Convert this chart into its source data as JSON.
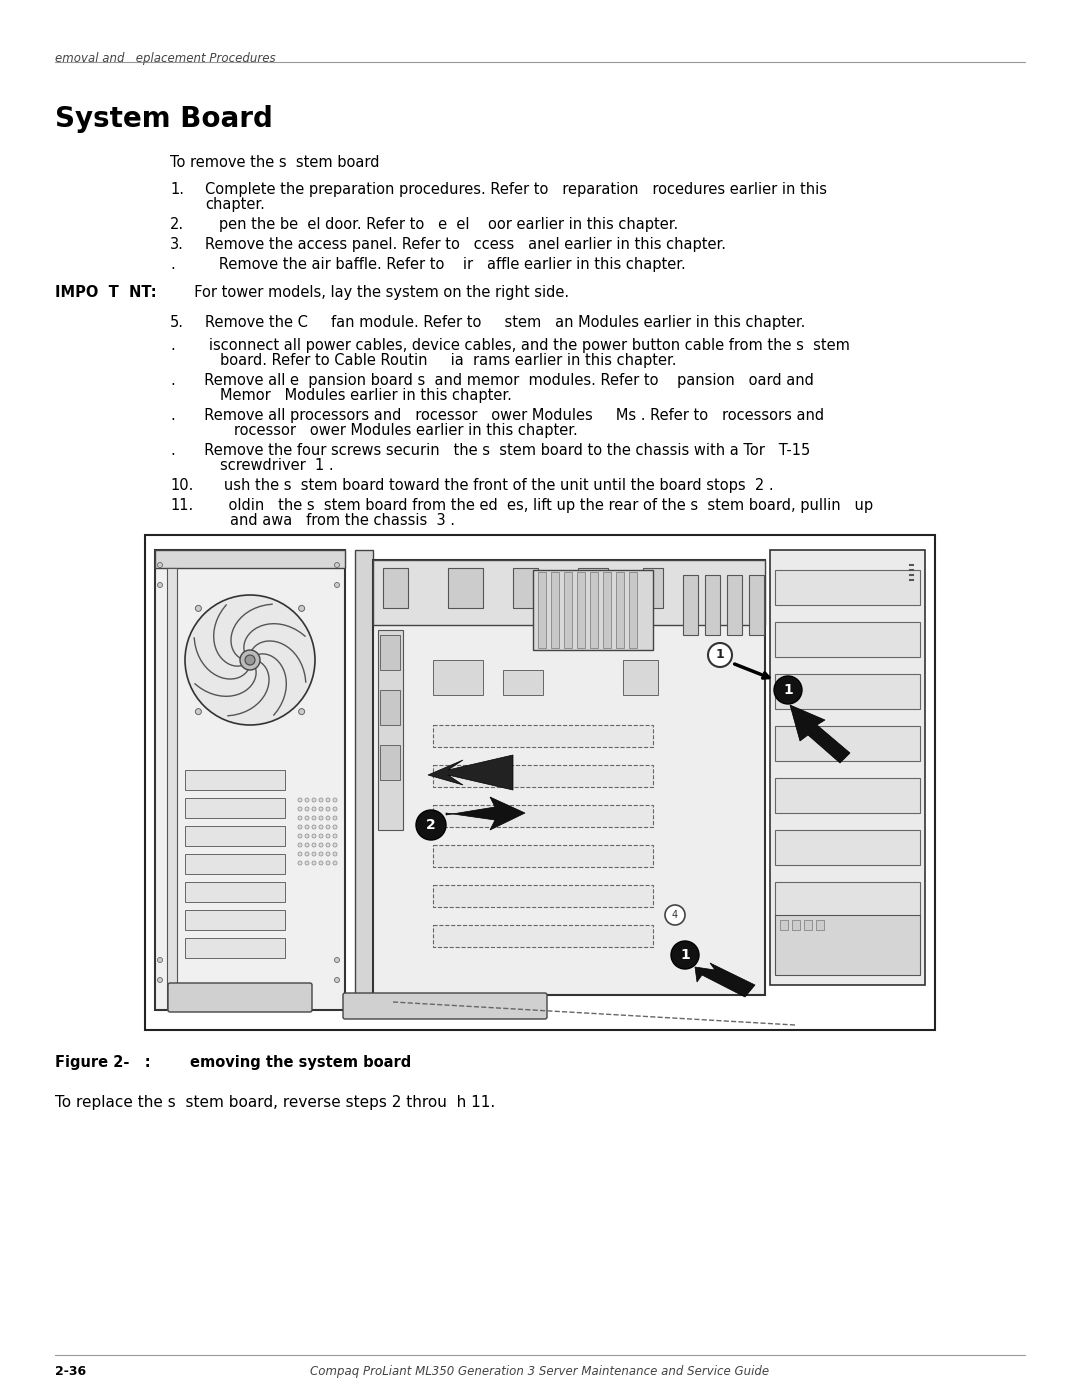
{
  "page_width": 10.8,
  "page_height": 13.97,
  "bg_color": "#ffffff",
  "header_text": "emoval and   eplacement Procedures",
  "title": "System Board",
  "body_fontsize": 10.5,
  "intro_text": "To remove the s  stem board",
  "important_bold": "IMPO  T  NT:",
  "important_rest": "  For tower models, lay the system on the right side.",
  "figure_caption_bold": "Figure 2-   :     emoving the system board",
  "replace_text": "To replace the s  stem board, reverse steps 2 throu  h 11.",
  "footer_left": "2-36",
  "footer_center": "Compaq ProLiant ML350 Generation 3 Server Maintenance and Service Guide",
  "line_color": "#999999",
  "items1": [
    [
      "1.",
      "Complete the preparation procedures. Refer to   reparation   rocedures earlier in this",
      "chapter."
    ],
    [
      "2.",
      "   pen the be  el door. Refer to   e  el    oor earlier in this chapter.",
      ""
    ],
    [
      "3.",
      "Remove the access panel. Refer to   ccess   anel earlier in this chapter.",
      ""
    ],
    [
      ".",
      "   Remove the air baffle. Refer to    ir   affle earlier in this chapter.",
      ""
    ]
  ],
  "items2": [
    [
      "5.",
      "Remove the C     fan module. Refer to     stem   an Modules earlier in this chapter.",
      ""
    ],
    [
      ".",
      "   isconnect all power cables, device cables, and the power button cable from the s  stem",
      "board. Refer to Cable Routin     ia  rams earlier in this chapter."
    ],
    [
      ".",
      "  Remove all e  pansion board s  and memor  modules. Refer to    pansion   oard and",
      "Memor   Modules earlier in this chapter."
    ],
    [
      ".",
      "  Remove all processors and   rocessor   ower Modules     Ms . Refer to   rocessors and",
      "   rocessor   ower Modules earlier in this chapter."
    ],
    [
      ".",
      "  Remove the four screws securin   the s  stem board to the chassis with a Tor   T-15",
      "screwdriver  1 ."
    ],
    [
      "10.",
      "   ush the s  stem board toward the front of the unit until the board stops  2 .",
      ""
    ],
    [
      "11.",
      "    oldin   the s  stem board from the ed  es, lift up the rear of the s  stem board, pullin   up",
      "and awa   from the chassis  3 ."
    ]
  ]
}
